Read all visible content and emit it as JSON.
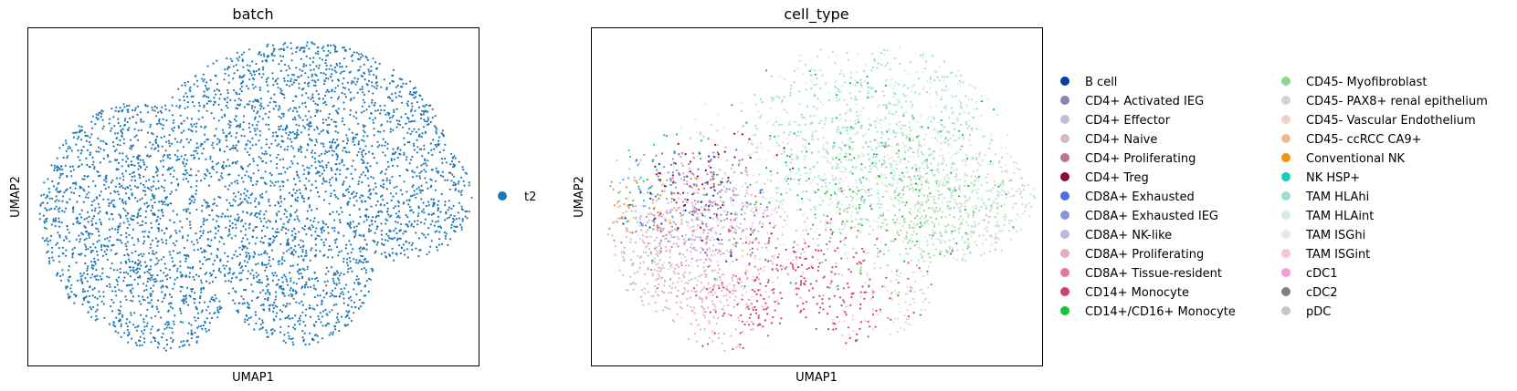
{
  "chart_data": [
    {
      "type": "scatter",
      "title": "batch",
      "xlabel": "UMAP1",
      "ylabel": "UMAP2",
      "xticks": [],
      "yticks": [],
      "legend_placement": "right",
      "series": [
        {
          "name": "t2",
          "color": "#1f77b4"
        }
      ]
    },
    {
      "type": "scatter",
      "title": "cell_type",
      "xlabel": "UMAP1",
      "ylabel": "UMAP2",
      "xticks": [],
      "yticks": [],
      "legend_placement": "right",
      "legend_columns": 2,
      "series": [
        {
          "name": "B cell",
          "color": "#023fa5"
        },
        {
          "name": "CD4+ Activated IEG",
          "color": "#7d87b9"
        },
        {
          "name": "CD4+ Effector",
          "color": "#bec1d4"
        },
        {
          "name": "CD4+ Naive",
          "color": "#d6bcc0"
        },
        {
          "name": "CD4+ Proliferating",
          "color": "#bb7784"
        },
        {
          "name": "CD4+ Treg",
          "color": "#8e063b"
        },
        {
          "name": "CD8A+ Exhausted",
          "color": "#4a6fe3"
        },
        {
          "name": "CD8A+ Exhausted IEG",
          "color": "#8595e1"
        },
        {
          "name": "CD8A+ NK-like",
          "color": "#b5bbe3"
        },
        {
          "name": "CD8A+ Proliferating",
          "color": "#e6afb9"
        },
        {
          "name": "CD8A+ Tissue-resident",
          "color": "#e07b91"
        },
        {
          "name": "CD14+ Monocyte",
          "color": "#d33f6a"
        },
        {
          "name": "CD14+/CD16+ Monocyte",
          "color": "#11c638"
        },
        {
          "name": "CD45- Myofibroblast",
          "color": "#8dd593"
        },
        {
          "name": "CD45- PAX8+ renal epithelium",
          "color": "#c6dec7"
        },
        {
          "name": "CD45- Vascular Endothelium",
          "color": "#ead3c6"
        },
        {
          "name": "CD45- ccRCC CA9+",
          "color": "#f0b98d"
        },
        {
          "name": "Conventional NK",
          "color": "#ef9708"
        },
        {
          "name": "NK HSP+",
          "color": "#0fcfc0"
        },
        {
          "name": "TAM HLAhi",
          "color": "#9cded6"
        },
        {
          "name": "TAM HLAint",
          "color": "#d5eae7"
        },
        {
          "name": "TAM ISGhi",
          "color": "#f3e1eb"
        },
        {
          "name": "TAM ISGint",
          "color": "#f6c4e1"
        },
        {
          "name": "cDC1",
          "color": "#f79cd4"
        },
        {
          "name": "cDC2",
          "color": "#7f7f7f"
        },
        {
          "name": "pDC",
          "color": "#c7c7c7"
        }
      ]
    }
  ]
}
